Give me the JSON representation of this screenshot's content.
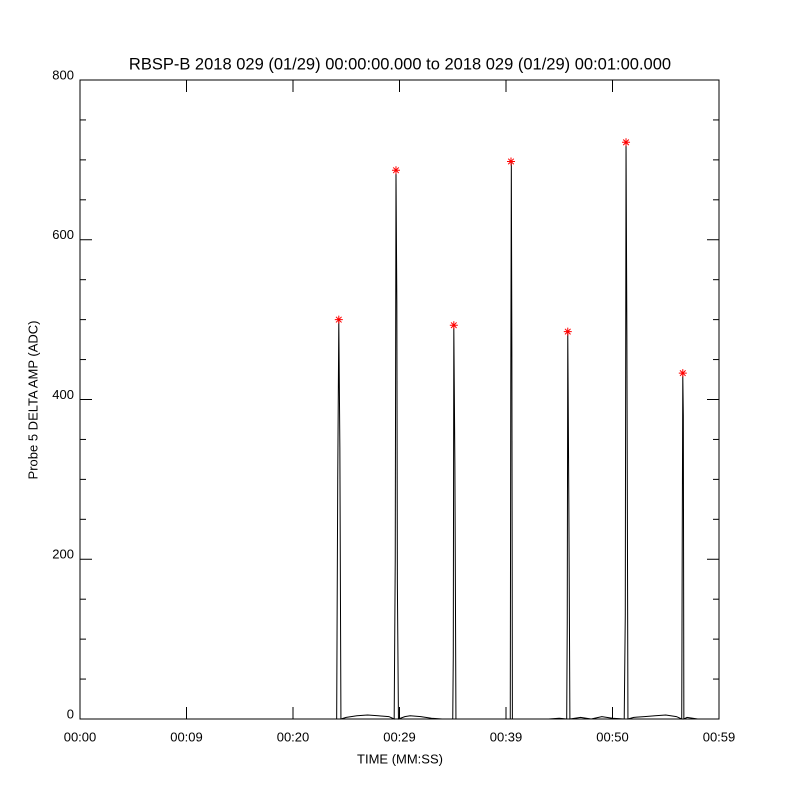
{
  "chart_data": {
    "type": "line",
    "title": "RBSP-B 2018 029 (01/29) 00:00:00.000 to 2018 029 (01/29) 00:01:00.000",
    "x_label": "TIME (MM:SS)",
    "y_label": "Probe 5 DELTA AMP (ADC)",
    "xlim": [
      0,
      60
    ],
    "xticks": [
      {
        "value": 0,
        "label": "00:00"
      },
      {
        "value": 10,
        "label": "00:09"
      },
      {
        "value": 20,
        "label": "00:20"
      },
      {
        "value": 30,
        "label": "00:29"
      },
      {
        "value": 40,
        "label": "00:39"
      },
      {
        "value": 50,
        "label": "00:50"
      },
      {
        "value": 60,
        "label": "00:59"
      }
    ],
    "ylim": [
      0,
      800
    ],
    "yticks": [
      0,
      200,
      400,
      600,
      800
    ],
    "yminorticks": [
      50,
      100,
      150,
      250,
      300,
      350,
      450,
      500,
      550,
      650,
      700,
      750
    ],
    "series": [
      {
        "color": "#000000",
        "marker": "none",
        "x": [
          22.6,
          24.1,
          24.2,
          24.3,
          24.4,
          24.5,
          25,
          26,
          27,
          28,
          29,
          29.5,
          29.6,
          29.67,
          29.75,
          29.8,
          29.9,
          30.5,
          31,
          32,
          33,
          34,
          35,
          35.05,
          35.1,
          35.2,
          35.3,
          36.5,
          38,
          40.4,
          40.45,
          40.5,
          40.55,
          40.6,
          41.5,
          44,
          45,
          45.7,
          45.75,
          45.8,
          45.9,
          46,
          47,
          48,
          49,
          50,
          51.1,
          51.2,
          51.27,
          51.35,
          51.45,
          52,
          53,
          54,
          55,
          56,
          56.5,
          56.55,
          56.6,
          56.65,
          56.7,
          57,
          58
        ],
        "values": [
          0,
          0,
          300,
          498,
          340,
          0,
          2,
          4,
          5,
          4,
          3,
          0,
          200,
          685,
          520,
          170,
          0,
          3,
          4,
          3,
          1,
          0,
          0,
          80,
          490,
          320,
          0,
          0,
          0,
          0,
          420,
          696,
          460,
          0,
          0,
          0,
          1,
          0,
          120,
          483,
          270,
          0,
          2,
          0,
          3,
          1,
          0,
          130,
          720,
          480,
          0,
          2,
          3,
          4,
          5,
          3,
          0,
          230,
          430,
          380,
          0,
          2,
          0
        ]
      },
      {
        "color": "#ff0000",
        "marker": "asterisk",
        "x": [
          24.3,
          29.67,
          35.1,
          40.47,
          45.8,
          51.27,
          56.6
        ],
        "values": [
          500,
          687,
          493,
          698,
          485,
          722,
          433
        ]
      }
    ]
  }
}
